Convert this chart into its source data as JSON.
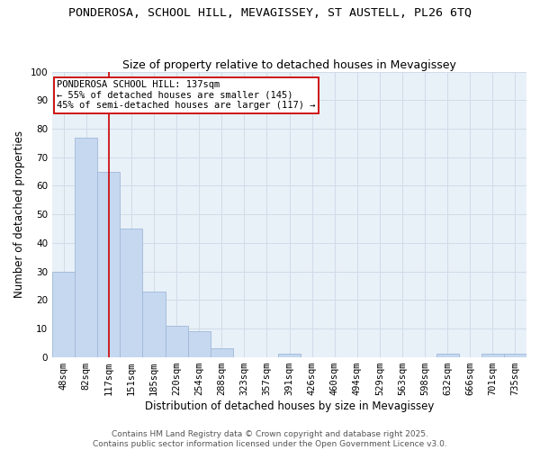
{
  "title": "PONDEROSA, SCHOOL HILL, MEVAGISSEY, ST AUSTELL, PL26 6TQ",
  "subtitle": "Size of property relative to detached houses in Mevagissey",
  "xlabel": "Distribution of detached houses by size in Mevagissey",
  "ylabel": "Number of detached properties",
  "bar_color": "#c5d8f0",
  "bar_edge_color": "#a0b8d8",
  "bin_labels": [
    "48sqm",
    "82sqm",
    "117sqm",
    "151sqm",
    "185sqm",
    "220sqm",
    "254sqm",
    "288sqm",
    "323sqm",
    "357sqm",
    "391sqm",
    "426sqm",
    "460sqm",
    "494sqm",
    "529sqm",
    "563sqm",
    "598sqm",
    "632sqm",
    "666sqm",
    "701sqm",
    "735sqm"
  ],
  "bar_heights": [
    30,
    77,
    65,
    45,
    23,
    11,
    9,
    3,
    0,
    0,
    1,
    0,
    0,
    0,
    0,
    0,
    0,
    1,
    0,
    1,
    1
  ],
  "vline_x": 2,
  "vline_color": "#cc0000",
  "annotation_text": "PONDEROSA SCHOOL HILL: 137sqm\n← 55% of detached houses are smaller (145)\n45% of semi-detached houses are larger (117) →",
  "annotation_box_color": "white",
  "annotation_box_edge_color": "#cc0000",
  "ylim": [
    0,
    100
  ],
  "yticks": [
    0,
    10,
    20,
    30,
    40,
    50,
    60,
    70,
    80,
    90,
    100
  ],
  "grid_color": "#d0dce8",
  "background_color": "#e8f0f8",
  "footnote1": "Contains HM Land Registry data © Crown copyright and database right 2025.",
  "footnote2": "Contains public sector information licensed under the Open Government Licence v3.0.",
  "title_fontsize": 9.5,
  "subtitle_fontsize": 9,
  "xlabel_fontsize": 8.5,
  "ylabel_fontsize": 8.5,
  "tick_fontsize": 7.5,
  "annotation_fontsize": 7.5,
  "footnote_fontsize": 6.5
}
